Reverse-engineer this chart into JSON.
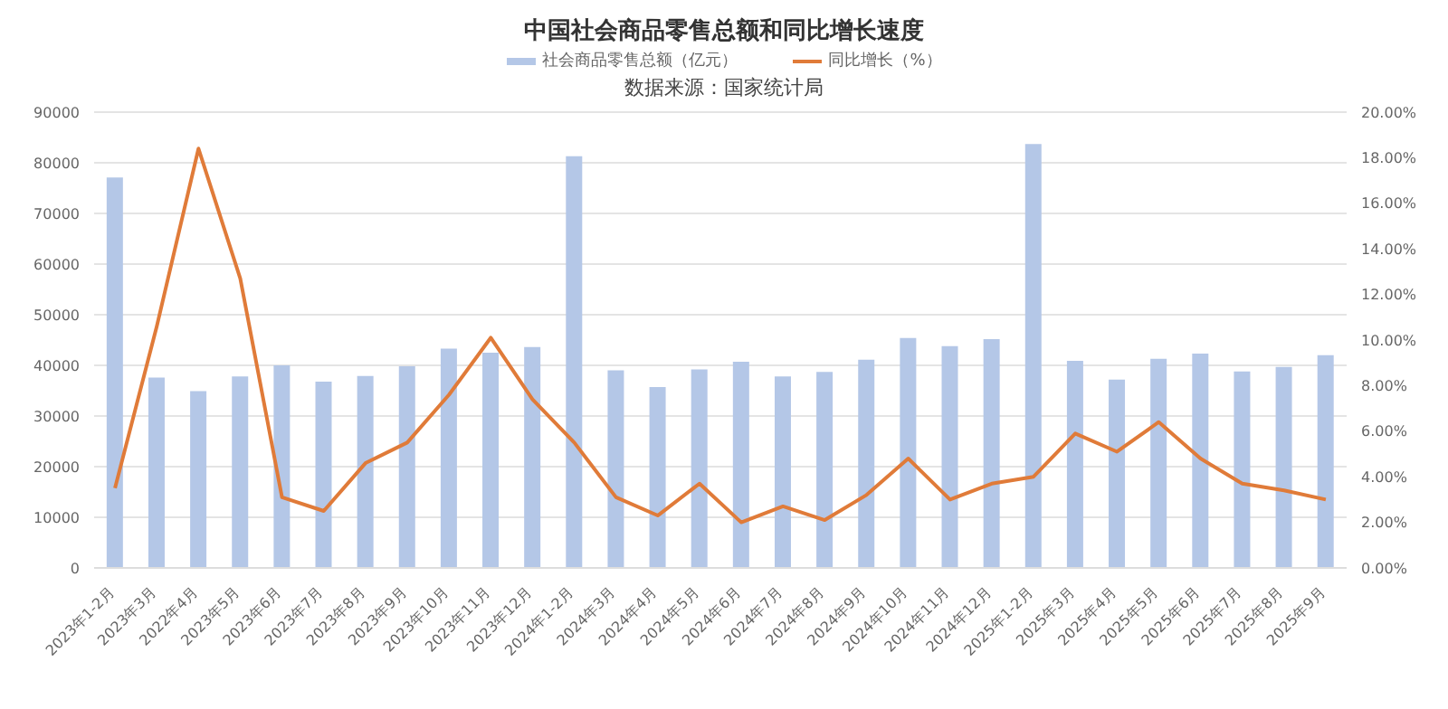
{
  "chart_data": {
    "type": "bar",
    "title": "中国社会商品零售总额和同比增长速度",
    "subtitle": "数据来源：国家统计局",
    "categories": [
      "2023年1-2月",
      "2023年3月",
      "2022年4月",
      "2023年5月",
      "2023年6月",
      "2023年7月",
      "2023年8月",
      "2023年9月",
      "2023年10月",
      "2023年11月",
      "2023年12月",
      "2024年1-2月",
      "2024年3月",
      "2024年4月",
      "2024年5月",
      "2024年6月",
      "2024年7月",
      "2024年8月",
      "2024年9月",
      "2024年10月",
      "2024年11月",
      "2024年12月",
      "2025年1-2月",
      "2025年3月",
      "2025年4月",
      "2025年5月",
      "2025年6月",
      "2025年7月",
      "2025年8月",
      "2025年9月"
    ],
    "series": [
      {
        "name": "社会商品零售总额（亿元）",
        "color": "#b4c7e7",
        "values": [
          77100,
          37600,
          34900,
          37800,
          40000,
          36800,
          37900,
          39800,
          43300,
          42500,
          43600,
          81300,
          39000,
          35700,
          39200,
          40700,
          37800,
          38700,
          41100,
          45400,
          43800,
          45200,
          83700,
          40900,
          37200,
          41300,
          42300,
          38800,
          39700,
          42000
        ]
      },
      {
        "name": "同比增长（%）",
        "type": "line",
        "axis": "y2",
        "color": "#e07b39",
        "values": [
          3.5,
          10.6,
          18.4,
          12.7,
          3.1,
          2.5,
          4.6,
          5.5,
          7.6,
          10.1,
          7.4,
          5.5,
          3.1,
          2.3,
          3.7,
          2.0,
          2.7,
          2.1,
          3.2,
          4.8,
          3.0,
          3.7,
          4.0,
          5.9,
          5.1,
          6.4,
          4.8,
          3.7,
          3.4,
          3.0
        ]
      }
    ],
    "ylim": [
      0,
      90000
    ],
    "yticks": [
      0,
      10000,
      20000,
      30000,
      40000,
      50000,
      60000,
      70000,
      80000,
      90000
    ],
    "y2lim": [
      0,
      20
    ],
    "y2ticks": [
      {
        "value": 0,
        "label": "0.00%"
      },
      {
        "value": 2,
        "label": "2.00%"
      },
      {
        "value": 4,
        "label": "4.00%"
      },
      {
        "value": 6,
        "label": "6.00%"
      },
      {
        "value": 8,
        "label": "8.00%"
      },
      {
        "value": 10,
        "label": "10.00%"
      },
      {
        "value": 12,
        "label": "12.00%"
      },
      {
        "value": 14,
        "label": "14.00%"
      },
      {
        "value": 16,
        "label": "16.00%"
      },
      {
        "value": 18,
        "label": "18.00%"
      },
      {
        "value": 20,
        "label": "20.00%"
      }
    ],
    "grid": "y",
    "legend": "top",
    "marker": "none",
    "line_style": "solid"
  }
}
